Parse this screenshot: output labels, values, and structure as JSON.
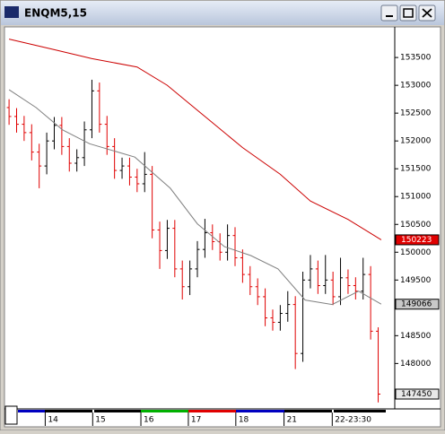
{
  "chart_data": {
    "type": "ohlc",
    "title": "ENQM5,15",
    "opens": [
      152600,
      152440,
      152300,
      152150,
      151800,
      151550,
      152000,
      152280,
      151900,
      151600,
      151700,
      152200,
      152900,
      152300,
      151900,
      151470,
      151550,
      151350,
      151230,
      151400,
      150400,
      150030,
      150430,
      149700,
      149380,
      149700,
      150050,
      150350,
      150190,
      150000,
      150300,
      149900,
      149600,
      149380,
      149200,
      148820,
      148740,
      148900,
      149060,
      148180,
      149500,
      149700,
      149400,
      149500,
      149200,
      149540,
      149400,
      149300,
      149600,
      148580
    ],
    "highs": [
      152750,
      152590,
      152450,
      152300,
      151950,
      152150,
      152430,
      152430,
      152050,
      151850,
      152350,
      153100,
      153050,
      152450,
      152050,
      151700,
      151700,
      151500,
      151800,
      151550,
      150550,
      150580,
      150580,
      149850,
      149850,
      150200,
      150600,
      150500,
      150340,
      150500,
      150450,
      150050,
      149750,
      149530,
      149350,
      148970,
      149050,
      149300,
      149210,
      149650,
      149950,
      149850,
      149950,
      149650,
      149900,
      149690,
      149550,
      149900,
      149750,
      148650
    ],
    "lows": [
      152290,
      152150,
      152000,
      151650,
      151150,
      151400,
      151850,
      151750,
      151450,
      151450,
      151550,
      152050,
      152150,
      151750,
      151320,
      151320,
      151200,
      151080,
      151080,
      150250,
      149700,
      149880,
      149550,
      149150,
      149230,
      149550,
      149900,
      150040,
      149850,
      149850,
      149750,
      149450,
      149230,
      149050,
      148670,
      148590,
      148590,
      148750,
      147900,
      148030,
      149350,
      149250,
      149250,
      149050,
      149050,
      149250,
      149150,
      149150,
      148430,
      147300
    ],
    "closes": [
      152440,
      152300,
      152150,
      151800,
      151550,
      152000,
      152280,
      151900,
      151600,
      151700,
      152200,
      152900,
      152300,
      151900,
      151470,
      151550,
      151350,
      151230,
      151400,
      150400,
      150030,
      150430,
      149700,
      149380,
      149700,
      150050,
      150350,
      150190,
      150000,
      150300,
      149900,
      149600,
      149380,
      149200,
      148820,
      148740,
      148900,
      149060,
      148180,
      149500,
      149700,
      149400,
      149500,
      149200,
      149540,
      149400,
      149300,
      149600,
      148580,
      147450
    ],
    "up_color": "#000000",
    "down_color": "#e00000",
    "lines": [
      {
        "color": "#cc0000",
        "x": [
          0,
          6,
          11,
          17,
          21,
          26,
          31,
          36,
          40,
          45,
          49.4
        ],
        "values": [
          153830,
          153640,
          153480,
          153330,
          153000,
          152440,
          151880,
          151400,
          150920,
          150590,
          150223
        ]
      },
      {
        "color": "#808080",
        "x": [
          0,
          3.6,
          7.1,
          10.7,
          16.7,
          21.4,
          25,
          28.6,
          32.1,
          35.7,
          39.3,
          42.9,
          46.4,
          49.4
        ],
        "values": [
          152920,
          152600,
          152200,
          151950,
          151710,
          151150,
          150510,
          150100,
          149940,
          149700,
          149140,
          149060,
          149300,
          149066
        ]
      }
    ],
    "markers": [
      {
        "value": 150223,
        "color": "#e00000",
        "text_color": "#ffffff"
      },
      {
        "value": 149066,
        "color": "#c8c8c8",
        "text_color": "#000000"
      },
      {
        "value": 147450,
        "color": "#e8e8e8",
        "text_color": "#000000"
      }
    ],
    "ylim": [
      147200,
      154050
    ],
    "yticks": [
      148000,
      148500,
      149500,
      150000,
      150500,
      151000,
      151500,
      152000,
      152500,
      153000,
      153500
    ],
    "xlim": [
      -0.25,
      51.2
    ],
    "xticks": [
      {
        "value": 4.8,
        "label": "14"
      },
      {
        "value": 11.1,
        "label": "15"
      },
      {
        "value": 17.5,
        "label": "16"
      },
      {
        "value": 23.8,
        "label": "17"
      },
      {
        "value": 30.1,
        "label": "18"
      },
      {
        "value": 36.5,
        "label": "21"
      },
      {
        "value": 42.9,
        "label": "22-23:30"
      }
    ]
  }
}
